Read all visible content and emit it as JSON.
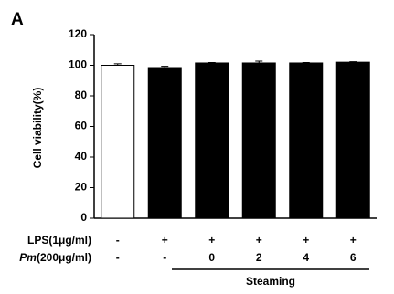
{
  "chart_data": {
    "type": "bar",
    "panel_label": "A",
    "y_label": "Cell viability(%)",
    "categories": [
      null,
      null,
      null,
      null,
      null,
      null
    ],
    "values": [
      100,
      98.5,
      101.5,
      101.5,
      101.5,
      102
    ],
    "errors": [
      1,
      0.8,
      0.3,
      1.2,
      0.3,
      0.3
    ],
    "colors": [
      "#ffffff",
      "#000000",
      "#000000",
      "#000000",
      "#000000",
      "#000000"
    ],
    "ylim": [
      0,
      120
    ],
    "yticks": [
      0,
      20,
      40,
      60,
      80,
      100,
      120
    ],
    "grid": false,
    "conditions": [
      {
        "label": "LPS(1μg/ml)",
        "values": [
          "-",
          "+",
          "+",
          "+",
          "+",
          "+"
        ]
      },
      {
        "label_italic": "Pm",
        "label": "(200μg/ml)",
        "values": [
          "-",
          "-",
          "0",
          "2",
          "4",
          "6"
        ]
      }
    ],
    "steaming_group": {
      "label": "Steaming"
    }
  }
}
